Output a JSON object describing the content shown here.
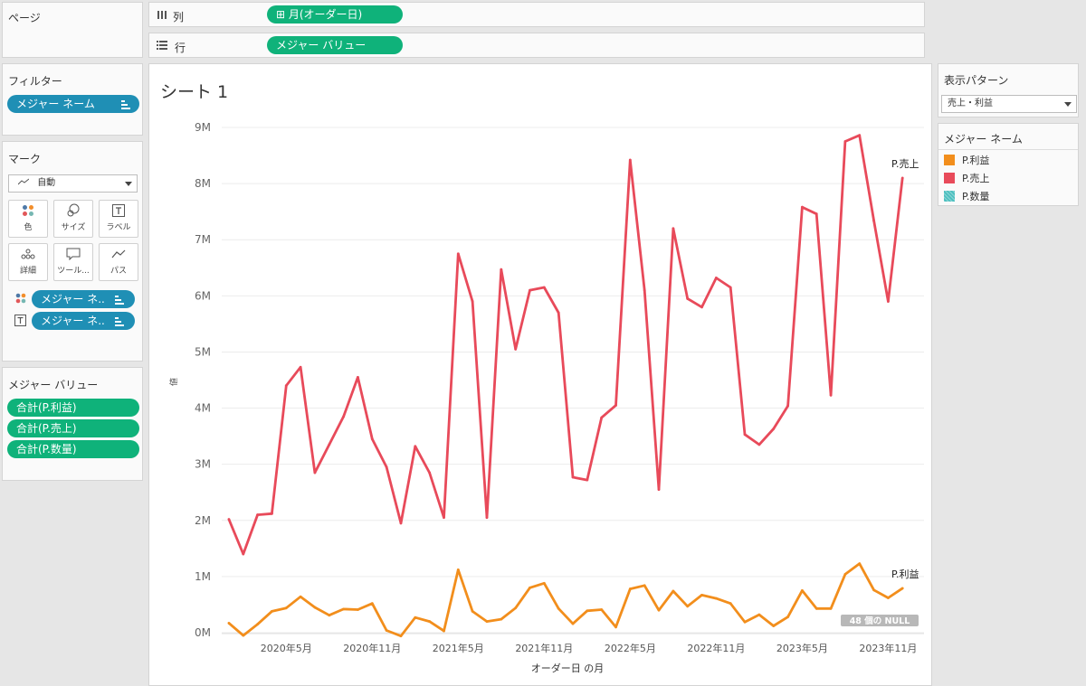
{
  "pages_panel": {
    "title": "ページ"
  },
  "shelves": {
    "columns": {
      "label": "列",
      "pill": "⊞ 月(オーダー日)"
    },
    "rows": {
      "label": "行",
      "pill": "メジャー バリュー"
    }
  },
  "filters": {
    "title": "フィルター",
    "pill": "メジャー ネーム"
  },
  "marks": {
    "title": "マーク",
    "type_value": "自動",
    "buttons": [
      "色",
      "サイズ",
      "ラベル",
      "詳細",
      "ツール...",
      "パス"
    ],
    "pills": [
      "メジャー ネ..",
      "メジャー ネ.."
    ]
  },
  "measure_values": {
    "title": "メジャー バリュー",
    "pills": [
      "合計(P.利益)",
      "合計(P.売上)",
      "合計(P.数量)"
    ]
  },
  "sheet": {
    "title": "シート 1"
  },
  "show_me": {
    "title": "表示パターン",
    "value": "売上・利益"
  },
  "legend": {
    "title": "メジャー ネーム",
    "items": [
      {
        "label": "P.利益",
        "color": "#f28e1c"
      },
      {
        "label": "P.売上",
        "color": "#e84a5a"
      },
      {
        "label": "P.数量",
        "color": "#4ec0c0"
      }
    ]
  },
  "chart_data": {
    "type": "line",
    "title": "",
    "xlabel": "オーダー日 の月",
    "ylabel": "値",
    "y_ticks": [
      "0M",
      "1M",
      "2M",
      "3M",
      "4M",
      "5M",
      "6M",
      "7M",
      "8M",
      "9M"
    ],
    "ylim": [
      0,
      9000000
    ],
    "x_ticks": [
      "2020年5月",
      "2020年11月",
      "2021年5月",
      "2021年11月",
      "2022年5月",
      "2022年11月",
      "2023年5月",
      "2023年11月"
    ],
    "x_tick_positions": [
      4,
      10,
      16,
      22,
      28,
      34,
      40,
      46
    ],
    "x_range": [
      -0.5,
      48.5
    ],
    "null_badge": "48 個の NULL",
    "series": [
      {
        "name": "P.売上",
        "color": "#e84a5a",
        "end_label": "P.売上",
        "values": [
          2020000,
          1400000,
          2100000,
          2120000,
          4400000,
          4730000,
          2850000,
          3350000,
          3850000,
          4550000,
          3450000,
          2950000,
          1950000,
          3320000,
          2850000,
          2050000,
          6750000,
          5900000,
          2050000,
          6470000,
          5050000,
          6100000,
          6150000,
          5700000,
          2770000,
          2720000,
          3830000,
          4050000,
          8420000,
          6100000,
          2550000,
          7200000,
          5950000,
          5800000,
          6320000,
          6150000,
          3530000,
          3350000,
          3630000,
          4040000,
          7580000,
          7460000,
          4230000,
          8750000,
          8860000,
          7340000,
          5900000,
          8100000
        ]
      },
      {
        "name": "P.利益",
        "color": "#f28e1c",
        "end_label": "P.利益",
        "values": [
          170000,
          -50000,
          150000,
          380000,
          440000,
          640000,
          450000,
          310000,
          420000,
          410000,
          520000,
          40000,
          -60000,
          270000,
          200000,
          30000,
          1120000,
          380000,
          200000,
          240000,
          440000,
          800000,
          880000,
          430000,
          160000,
          390000,
          410000,
          100000,
          780000,
          840000,
          400000,
          740000,
          470000,
          670000,
          610000,
          520000,
          190000,
          320000,
          120000,
          280000,
          750000,
          430000,
          430000,
          1040000,
          1230000,
          760000,
          620000,
          790000
        ]
      }
    ]
  }
}
